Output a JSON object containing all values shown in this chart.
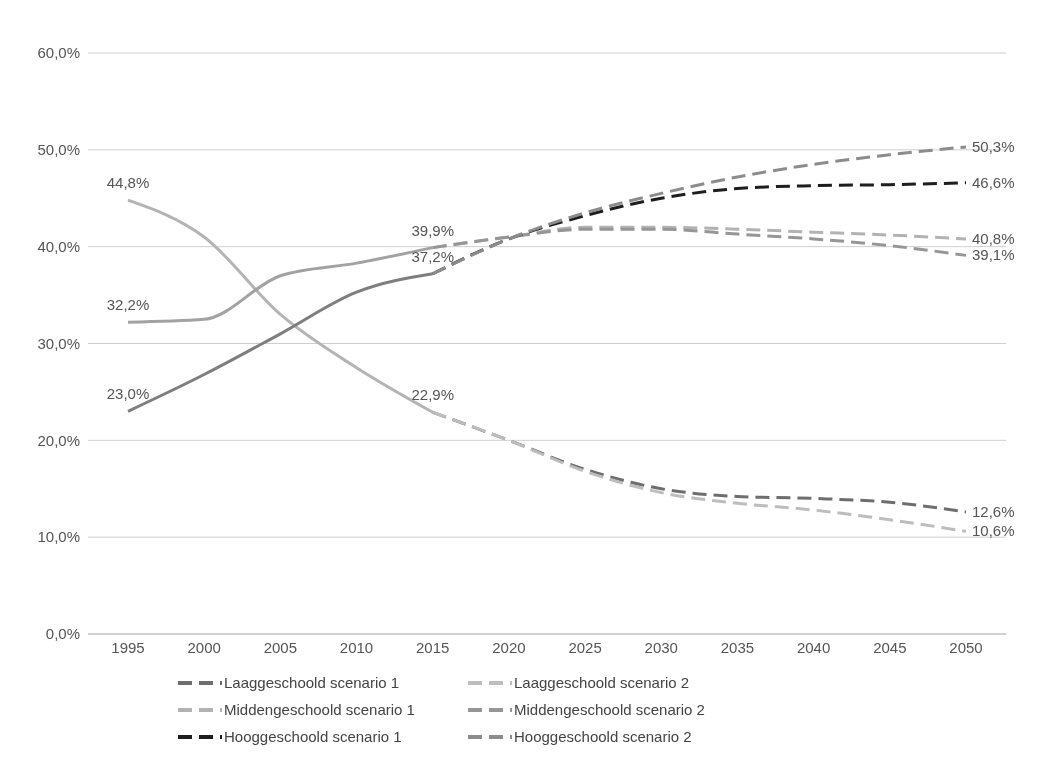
{
  "chart_data": {
    "type": "line",
    "categories": [
      "1995",
      "2000",
      "2005",
      "2010",
      "2015",
      "2020",
      "2025",
      "2030",
      "2035",
      "2040",
      "2045",
      "2050"
    ],
    "ylim": [
      0,
      60
    ],
    "yticks": [
      {
        "value": 0,
        "label": "0,0%"
      },
      {
        "value": 10,
        "label": "10,0%"
      },
      {
        "value": 20,
        "label": "20,0%"
      },
      {
        "value": 30,
        "label": "30,0%"
      },
      {
        "value": 40,
        "label": "40,0%"
      },
      {
        "value": 50,
        "label": "50,0%"
      },
      {
        "value": 60,
        "label": "60,0%"
      }
    ],
    "grid": "y",
    "legend": "bottom",
    "marker": "none",
    "series": [
      {
        "color": "#b4b4b4",
        "line_style": "solid",
        "values": [
          44.8,
          41.0,
          33.0,
          27.5,
          22.9,
          null,
          null,
          null,
          null,
          null,
          null,
          null
        ],
        "value_labels": [
          "44,8%",
          null,
          null,
          null,
          "22,9%",
          null,
          null,
          null,
          null,
          null,
          null,
          null
        ]
      },
      {
        "color": "#a2a2a2",
        "line_style": "solid",
        "values": [
          32.2,
          32.5,
          37.0,
          38.3,
          39.9,
          null,
          null,
          null,
          null,
          null,
          null,
          null
        ],
        "value_labels": [
          "32,2%",
          null,
          null,
          null,
          "39,9%",
          null,
          null,
          null,
          null,
          null,
          null,
          null
        ]
      },
      {
        "color": "#7e7e7e",
        "line_style": "solid",
        "values": [
          23.0,
          26.8,
          31.0,
          35.3,
          37.2,
          null,
          null,
          null,
          null,
          null,
          null,
          null
        ],
        "value_labels": [
          "23,0%",
          null,
          null,
          null,
          "37,2%",
          null,
          null,
          null,
          null,
          null,
          null,
          null
        ]
      },
      {
        "name": "Laaggeschoold scenario 1",
        "color": "#6e6e6e",
        "line_style": "dashed",
        "values": [
          null,
          null,
          null,
          null,
          22.9,
          20.0,
          17.0,
          15.0,
          14.2,
          14.0,
          13.6,
          12.6
        ],
        "value_labels": [
          null,
          null,
          null,
          null,
          null,
          null,
          null,
          null,
          null,
          null,
          null,
          "12,6%"
        ]
      },
      {
        "name": "Laaggeschoold scenario 2",
        "color": "#bdbdbd",
        "line_style": "dashed",
        "values": [
          null,
          null,
          null,
          null,
          22.9,
          20.0,
          16.8,
          14.6,
          13.5,
          12.8,
          11.8,
          10.6
        ],
        "value_labels": [
          null,
          null,
          null,
          null,
          null,
          null,
          null,
          null,
          null,
          null,
          null,
          "10,6%"
        ]
      },
      {
        "name": "Middengeschoold scenario 1",
        "color": "#b2b2b2",
        "line_style": "dashed",
        "values": [
          null,
          null,
          null,
          null,
          39.9,
          41.0,
          42.0,
          42.0,
          41.8,
          41.5,
          41.2,
          40.8
        ],
        "value_labels": [
          null,
          null,
          null,
          null,
          null,
          null,
          null,
          null,
          null,
          null,
          null,
          "40,8%"
        ]
      },
      {
        "name": "Middengeschoold scenario 2",
        "color": "#969696",
        "line_style": "dashed",
        "values": [
          null,
          null,
          null,
          null,
          39.9,
          41.0,
          41.8,
          41.8,
          41.3,
          40.8,
          40.1,
          39.1
        ],
        "value_labels": [
          null,
          null,
          null,
          null,
          null,
          null,
          null,
          null,
          null,
          null,
          null,
          "39,1%"
        ]
      },
      {
        "name": "Hooggeschoold scenario 1",
        "color": "#1e1e1e",
        "line_style": "dashed",
        "values": [
          null,
          null,
          null,
          null,
          37.2,
          40.8,
          43.2,
          45.0,
          46.0,
          46.3,
          46.4,
          46.6
        ],
        "value_labels": [
          null,
          null,
          null,
          null,
          null,
          null,
          null,
          null,
          null,
          null,
          null,
          "46,6%"
        ]
      },
      {
        "name": "Hooggeschoold scenario 2",
        "color": "#8c8c8c",
        "line_style": "dashed",
        "values": [
          null,
          null,
          null,
          null,
          37.2,
          40.8,
          43.5,
          45.5,
          47.2,
          48.5,
          49.5,
          50.3
        ],
        "value_labels": [
          null,
          null,
          null,
          null,
          null,
          null,
          null,
          null,
          null,
          null,
          null,
          "50,3%"
        ]
      }
    ]
  }
}
